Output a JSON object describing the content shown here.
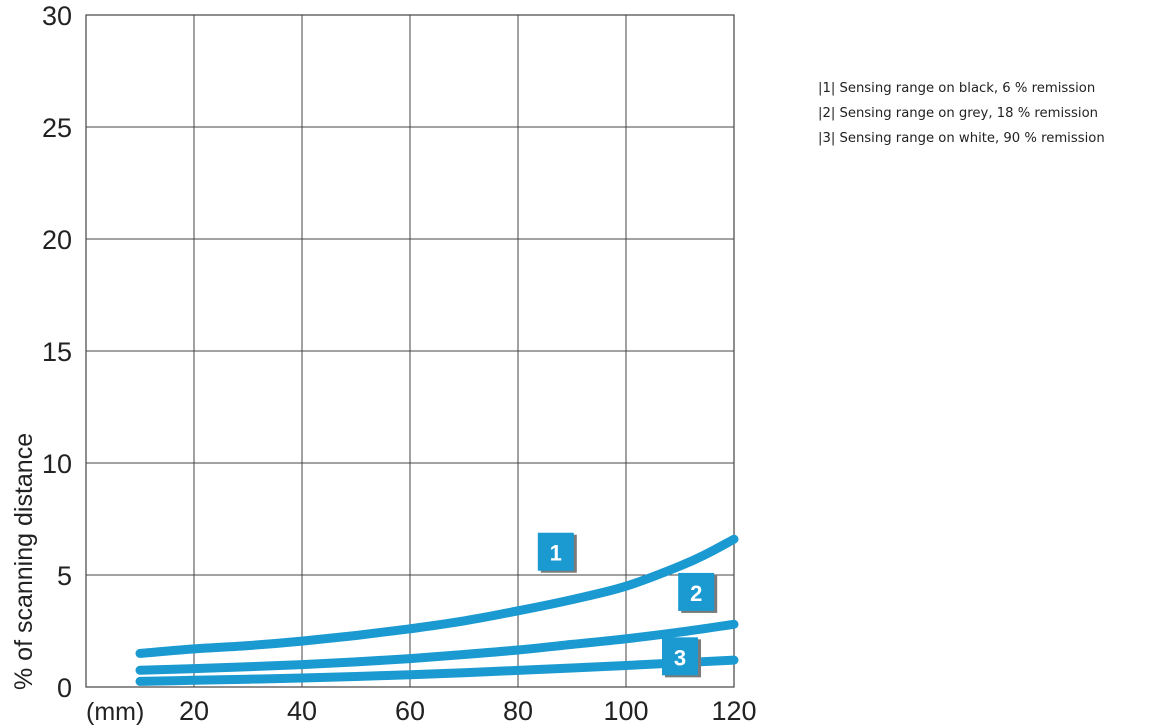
{
  "chart_data": {
    "type": "line",
    "title": "",
    "ylabel": "% of scanning distance",
    "xlabel": "",
    "x_unit": "(mm)",
    "xlim": [
      10,
      120
    ],
    "ylim": [
      0,
      30
    ],
    "x_ticks": [
      20,
      40,
      60,
      80,
      100,
      120
    ],
    "x_tick_labels": [
      "20",
      "40",
      "60",
      "80",
      "100",
      "120"
    ],
    "y_ticks": [
      0,
      5,
      10,
      15,
      20,
      25,
      30
    ],
    "y_tick_labels": [
      "0",
      "5",
      "10",
      "15",
      "20",
      "25",
      "30"
    ],
    "grid": true,
    "legend_position": "top-right",
    "series": [
      {
        "badge": "1",
        "color": "#1a9ad0",
        "x": [
          10,
          20,
          30,
          40,
          50,
          60,
          70,
          80,
          90,
          100,
          110,
          115,
          120
        ],
        "y": [
          1.5,
          1.7,
          1.85,
          2.05,
          2.3,
          2.6,
          2.95,
          3.4,
          3.9,
          4.5,
          5.4,
          5.95,
          6.6
        ]
      },
      {
        "badge": "2",
        "color": "#1a9ad0",
        "x": [
          10,
          20,
          30,
          40,
          50,
          60,
          70,
          80,
          90,
          100,
          110,
          120
        ],
        "y": [
          0.75,
          0.82,
          0.9,
          1.0,
          1.12,
          1.27,
          1.45,
          1.65,
          1.9,
          2.15,
          2.45,
          2.8
        ]
      },
      {
        "badge": "3",
        "color": "#1a9ad0",
        "x": [
          10,
          20,
          30,
          40,
          50,
          60,
          70,
          80,
          90,
          100,
          110,
          120
        ],
        "y": [
          0.25,
          0.3,
          0.35,
          0.4,
          0.47,
          0.55,
          0.64,
          0.74,
          0.85,
          0.96,
          1.08,
          1.2
        ]
      }
    ],
    "legend": [
      "|1| Sensing range on black, 6 % remission",
      "|2| Sensing range on grey, 18 % remission",
      "|3| Sensing range on white, 90 % remission"
    ]
  }
}
